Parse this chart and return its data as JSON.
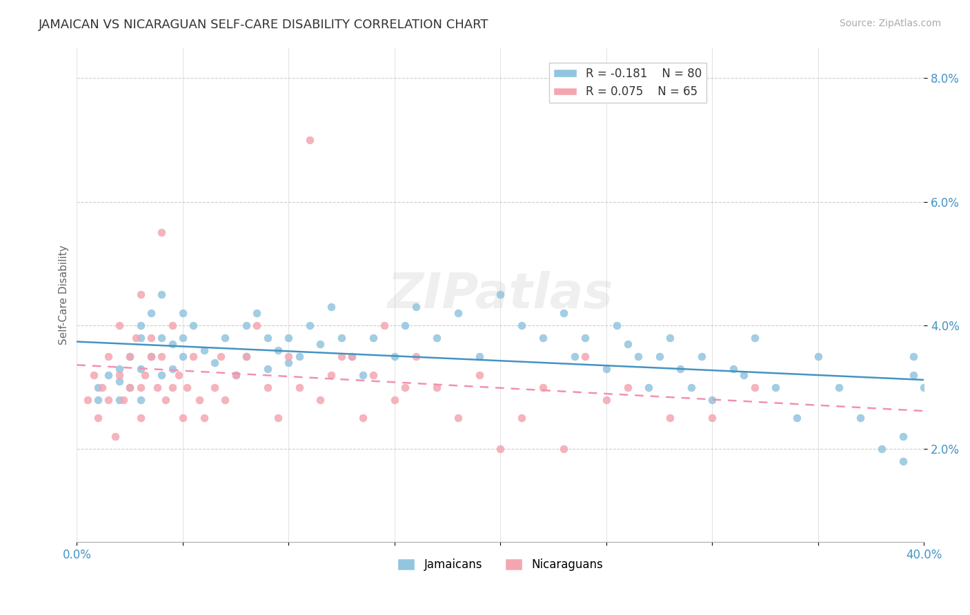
{
  "title": "JAMAICAN VS NICARAGUAN SELF-CARE DISABILITY CORRELATION CHART",
  "source": "Source: ZipAtlas.com",
  "ylabel": "Self-Care Disability",
  "xlabel": "",
  "x_min": 0.0,
  "x_max": 0.4,
  "y_min": 0.005,
  "y_max": 0.085,
  "y_ticks": [
    0.02,
    0.04,
    0.06,
    0.08
  ],
  "y_tick_labels": [
    "2.0%",
    "4.0%",
    "6.0%",
    "8.0%"
  ],
  "x_ticks": [
    0.0,
    0.05,
    0.1,
    0.15,
    0.2,
    0.25,
    0.3,
    0.35,
    0.4
  ],
  "x_tick_labels": [
    "0.0%",
    "",
    "",
    "",
    "",
    "",
    "",
    "",
    "40.0%"
  ],
  "jamaicans_color": "#92c5de",
  "nicaraguans_color": "#f4a6b0",
  "jamaicans_line_color": "#4393c3",
  "nicaraguans_line_color": "#f48fb1",
  "R_jamaicans": -0.181,
  "N_jamaicans": 80,
  "R_nicaraguans": 0.075,
  "N_nicaraguans": 65,
  "watermark": "ZIPatlas",
  "background_color": "#ffffff",
  "grid_color": "#cccccc",
  "title_color": "#333333",
  "axis_label_color": "#4393c3",
  "jamaicans_scatter": {
    "x": [
      0.01,
      0.01,
      0.015,
      0.02,
      0.02,
      0.02,
      0.025,
      0.025,
      0.03,
      0.03,
      0.03,
      0.03,
      0.035,
      0.035,
      0.04,
      0.04,
      0.04,
      0.045,
      0.045,
      0.05,
      0.05,
      0.05,
      0.055,
      0.06,
      0.065,
      0.07,
      0.075,
      0.08,
      0.08,
      0.085,
      0.09,
      0.09,
      0.095,
      0.1,
      0.1,
      0.105,
      0.11,
      0.115,
      0.12,
      0.125,
      0.13,
      0.135,
      0.14,
      0.15,
      0.155,
      0.16,
      0.17,
      0.18,
      0.19,
      0.2,
      0.21,
      0.22,
      0.23,
      0.235,
      0.24,
      0.25,
      0.255,
      0.26,
      0.265,
      0.27,
      0.275,
      0.28,
      0.285,
      0.29,
      0.295,
      0.3,
      0.31,
      0.315,
      0.32,
      0.33,
      0.34,
      0.35,
      0.36,
      0.37,
      0.38,
      0.39,
      0.39,
      0.395,
      0.395,
      0.4
    ],
    "y": [
      0.03,
      0.028,
      0.032,
      0.033,
      0.028,
      0.031,
      0.035,
      0.03,
      0.04,
      0.038,
      0.033,
      0.028,
      0.042,
      0.035,
      0.045,
      0.038,
      0.032,
      0.037,
      0.033,
      0.038,
      0.035,
      0.042,
      0.04,
      0.036,
      0.034,
      0.038,
      0.032,
      0.04,
      0.035,
      0.042,
      0.038,
      0.033,
      0.036,
      0.034,
      0.038,
      0.035,
      0.04,
      0.037,
      0.043,
      0.038,
      0.035,
      0.032,
      0.038,
      0.035,
      0.04,
      0.043,
      0.038,
      0.042,
      0.035,
      0.045,
      0.04,
      0.038,
      0.042,
      0.035,
      0.038,
      0.033,
      0.04,
      0.037,
      0.035,
      0.03,
      0.035,
      0.038,
      0.033,
      0.03,
      0.035,
      0.028,
      0.033,
      0.032,
      0.038,
      0.03,
      0.025,
      0.035,
      0.03,
      0.025,
      0.02,
      0.022,
      0.018,
      0.032,
      0.035,
      0.03
    ]
  },
  "nicaraguans_scatter": {
    "x": [
      0.005,
      0.008,
      0.01,
      0.012,
      0.015,
      0.015,
      0.018,
      0.02,
      0.02,
      0.022,
      0.025,
      0.025,
      0.028,
      0.03,
      0.03,
      0.03,
      0.032,
      0.035,
      0.035,
      0.038,
      0.04,
      0.04,
      0.042,
      0.045,
      0.045,
      0.048,
      0.05,
      0.052,
      0.055,
      0.058,
      0.06,
      0.065,
      0.068,
      0.07,
      0.075,
      0.08,
      0.085,
      0.09,
      0.095,
      0.1,
      0.105,
      0.11,
      0.115,
      0.12,
      0.125,
      0.13,
      0.135,
      0.14,
      0.145,
      0.15,
      0.155,
      0.16,
      0.17,
      0.18,
      0.19,
      0.2,
      0.21,
      0.22,
      0.23,
      0.24,
      0.25,
      0.26,
      0.28,
      0.3,
      0.32
    ],
    "y": [
      0.028,
      0.032,
      0.025,
      0.03,
      0.028,
      0.035,
      0.022,
      0.032,
      0.04,
      0.028,
      0.035,
      0.03,
      0.038,
      0.03,
      0.025,
      0.045,
      0.032,
      0.038,
      0.035,
      0.03,
      0.035,
      0.055,
      0.028,
      0.03,
      0.04,
      0.032,
      0.025,
      0.03,
      0.035,
      0.028,
      0.025,
      0.03,
      0.035,
      0.028,
      0.032,
      0.035,
      0.04,
      0.03,
      0.025,
      0.035,
      0.03,
      0.07,
      0.028,
      0.032,
      0.035,
      0.035,
      0.025,
      0.032,
      0.04,
      0.028,
      0.03,
      0.035,
      0.03,
      0.025,
      0.032,
      0.02,
      0.025,
      0.03,
      0.02,
      0.035,
      0.028,
      0.03,
      0.025,
      0.025,
      0.03
    ]
  }
}
